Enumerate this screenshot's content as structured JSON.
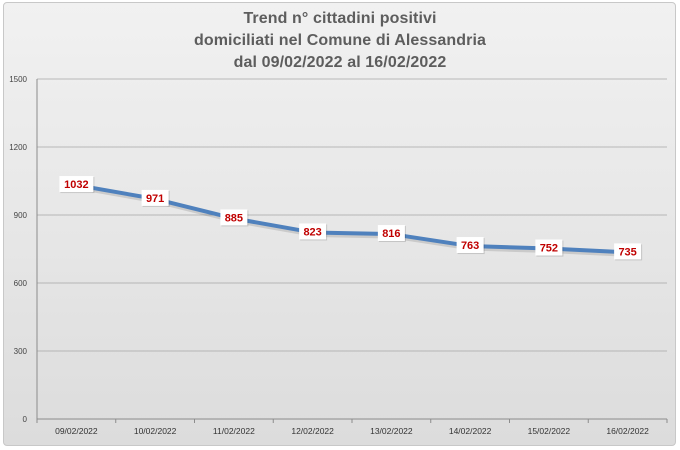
{
  "chart_data": {
    "type": "line",
    "title_lines": [
      "Trend n° cittadini positivi",
      "domiciliati nel Comune di Alessandria",
      "dal 09/02/2022 al 16/02/2022"
    ],
    "categories": [
      "09/02/2022",
      "10/02/2022",
      "11/02/2022",
      "12/02/2022",
      "13/02/2022",
      "14/02/2022",
      "15/02/2022",
      "16/02/2022"
    ],
    "series": [
      {
        "values": [
          1032,
          971,
          885,
          823,
          816,
          763,
          752,
          735
        ],
        "color": "#4f81bd"
      }
    ],
    "data_labels": [
      "1032",
      "971",
      "885",
      "823",
      "816",
      "763",
      "752",
      "735"
    ],
    "data_label_color": "#c00000",
    "ylim": [
      0,
      1500
    ],
    "yticks": [
      0,
      300,
      600,
      900,
      1200,
      1500
    ],
    "ytick_labels": [
      "0",
      "300",
      "600",
      "900",
      "1200",
      "1500"
    ],
    "grid": true,
    "legend": "none",
    "xlabel": "",
    "ylabel": ""
  }
}
